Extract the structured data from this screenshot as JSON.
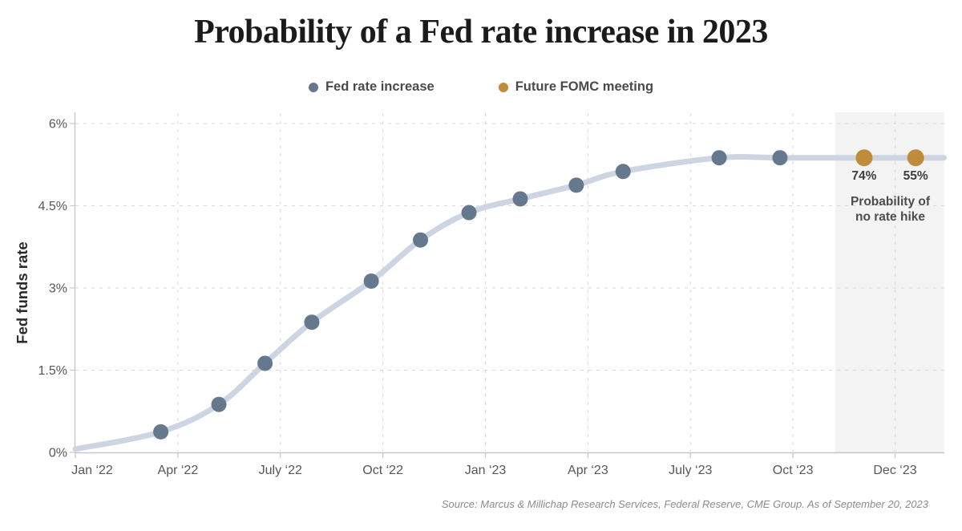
{
  "header": {
    "title": "Probability of a Fed rate increase in 2023"
  },
  "legend": {
    "items": [
      {
        "label": "Fed rate increase",
        "color": "#66788e"
      },
      {
        "label": "Future FOMC meeting",
        "color": "#bf8c3c"
      }
    ]
  },
  "footer": {
    "source": "Source:  Marcus & Millichap Research Services, Federal Reserve, CME Group. As of September 20, 2023"
  },
  "chart_data": {
    "type": "line",
    "title": "Probability of a Fed rate increase in 2023",
    "xlabel": "",
    "ylabel": "Fed funds rate",
    "ylim": [
      0,
      6
    ],
    "grid": "dashed",
    "legend_position": "top-center",
    "background_color": "#ffffff",
    "line_color": "#ccd5e1",
    "y_ticks": [
      {
        "v": 0,
        "label": "0%"
      },
      {
        "v": 1.5,
        "label": "1.5%"
      },
      {
        "v": 3,
        "label": "3%"
      },
      {
        "v": 4.5,
        "label": "4.5%"
      },
      {
        "v": 6,
        "label": "6%"
      }
    ],
    "x_ticks": [
      {
        "m": 0,
        "label": "Jan ‘22"
      },
      {
        "m": 3,
        "label": "Apr ‘22"
      },
      {
        "m": 6,
        "label": "July ‘22"
      },
      {
        "m": 9,
        "label": "Oct ‘22"
      },
      {
        "m": 12,
        "label": "Jan ‘23"
      },
      {
        "m": 15,
        "label": "Apr ‘23"
      },
      {
        "m": 18,
        "label": "July ‘23"
      },
      {
        "m": 21,
        "label": "Oct ‘23"
      },
      {
        "m": 23,
        "label": "Dec ‘23"
      }
    ],
    "series": [
      {
        "name": "Fed rate increase",
        "color": "#66788e",
        "dot_radius": 9.5,
        "points": [
          {
            "meeting": "Mar 22",
            "m": 2.5,
            "rate": 0.375
          },
          {
            "meeting": "May 22",
            "m": 4.2,
            "rate": 0.875
          },
          {
            "meeting": "Jun 22",
            "m": 5.55,
            "rate": 1.625
          },
          {
            "meeting": "Jul 22",
            "m": 6.92,
            "rate": 2.375
          },
          {
            "meeting": "Sep 22",
            "m": 8.66,
            "rate": 3.125
          },
          {
            "meeting": "Nov 22",
            "m": 10.1,
            "rate": 3.875
          },
          {
            "meeting": "Dec 22",
            "m": 11.52,
            "rate": 4.375
          },
          {
            "meeting": "Feb 23",
            "m": 13.02,
            "rate": 4.625
          },
          {
            "meeting": "Mar 23",
            "m": 14.66,
            "rate": 4.875
          },
          {
            "meeting": "May 23",
            "m": 16.03,
            "rate": 5.125
          },
          {
            "meeting": "Jul 23",
            "m": 18.84,
            "rate": 5.375
          },
          {
            "meeting": "Sep 23",
            "m": 20.62,
            "rate": 5.375
          }
        ]
      },
      {
        "name": "Future FOMC meeting",
        "color": "#bf8c3c",
        "dot_radius": 10.5,
        "points": [
          {
            "meeting": "Nov 23",
            "m": 22.4,
            "rate": 5.375,
            "probability_no_hike": "74%"
          },
          {
            "meeting": "Dec 23",
            "m": 23.4,
            "rate": 5.375,
            "probability_no_hike": "55%"
          }
        ]
      }
    ],
    "line_endpoints": {
      "start": {
        "m": 0,
        "rate": 0.06
      },
      "end": {
        "m": 23.95,
        "rate": 5.375
      }
    },
    "future_region": {
      "start_m": 21.84,
      "end_m": 23.95,
      "fill": "#f3f3f3",
      "note": "Probability of\nno rate hike"
    }
  }
}
